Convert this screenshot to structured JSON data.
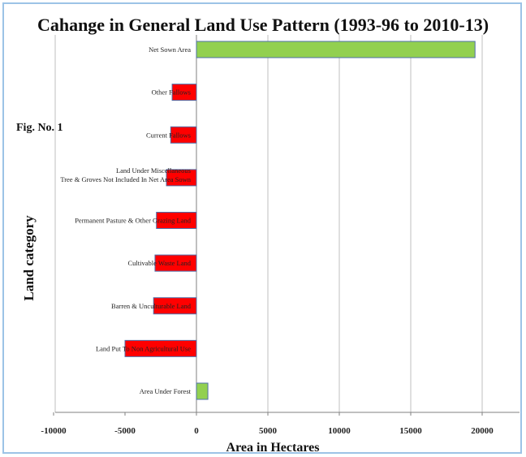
{
  "chart_data": {
    "type": "bar",
    "orientation": "horizontal",
    "title": "Cahange in General Land Use Pattern (1993-96 to 2010-13)",
    "annotation": "Fig. No. 1",
    "xlabel": "Area in Hectares",
    "ylabel": "Land  category",
    "xlim": [
      -10000,
      25000
    ],
    "xticks": [
      "-10000",
      "-5000",
      "0",
      "5000",
      "10000",
      "15000",
      "20000"
    ],
    "grid": true,
    "categories": [
      "Area Under Forest",
      "Land Put To Non Agricultural Use",
      "Barren & Unculturable Land",
      "Cultivable Waste Land",
      "Permanent Pasture & Other Grazing Land",
      [
        "Land Under Miscellaneous",
        "Tree & Groves Not Included In Net Area Sown"
      ],
      "Current Fallows",
      "Other Fallows",
      "Net Sown Area"
    ],
    "values": [
      800,
      -5000,
      -3000,
      -2900,
      -2800,
      -2100,
      -1800,
      -1700,
      19500
    ],
    "colors": {
      "positive": "#92d050",
      "negative": "#ff0000",
      "border": "#4f6faa",
      "grid": "#bfbfbf",
      "frame": "#9cc3e6"
    }
  }
}
